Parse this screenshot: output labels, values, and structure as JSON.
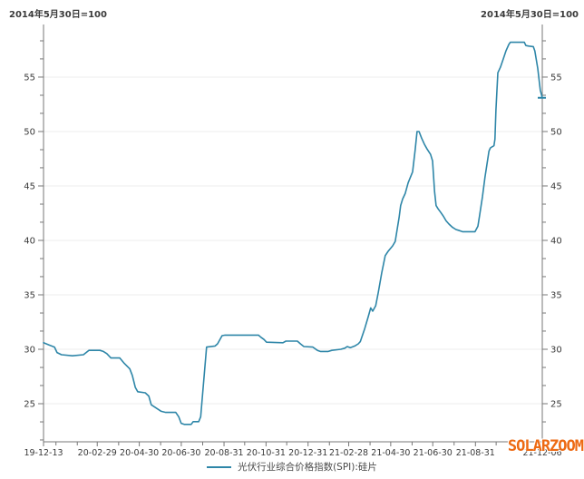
{
  "header": {
    "left_note": "2014年5月30日=100",
    "right_note": "2014年5月30日=100"
  },
  "legend": {
    "label": "光伏行业综合价格指数(SPI):硅片"
  },
  "watermark": {
    "text": "SOLARZOOM",
    "color": "#ed6a13"
  },
  "chart_data": {
    "type": "line",
    "title": "",
    "baseline_note": "2014年5月30日=100",
    "legend_position": "bottom-center",
    "grid": {
      "horizontal_majors": true,
      "color": "#ececec"
    },
    "axis_color": "#777777",
    "label_color": "#3a3a3a",
    "x_axis": {
      "unit": "date (YY-MM-DD), f = fraction of axis from 19-12-13 to 21-12-06",
      "labeled_ticks": [
        {
          "f": 0.0,
          "label": "19-12-13"
        },
        {
          "f": 0.1077,
          "label": "20-02-29"
        },
        {
          "f": 0.192,
          "label": "20-04-30"
        },
        {
          "f": 0.2762,
          "label": "20-06-30"
        },
        {
          "f": 0.3619,
          "label": "20-08-31"
        },
        {
          "f": 0.4461,
          "label": "20-10-31"
        },
        {
          "f": 0.5304,
          "label": "20-12-31"
        },
        {
          "f": 0.6119,
          "label": "21-02-28"
        },
        {
          "f": 0.6961,
          "label": "21-04-30"
        },
        {
          "f": 0.7804,
          "label": "21-06-30"
        },
        {
          "f": 0.866,
          "label": "21-08-31"
        },
        {
          "f": 1.0,
          "label": "21-12-06"
        }
      ],
      "minor_ticks_f": [
        0.0249,
        0.0677,
        0.1506,
        0.2348,
        0.3191,
        0.4033,
        0.4876,
        0.5732,
        0.6547,
        0.739,
        0.8232,
        0.9075,
        0.9503,
        0.9917
      ]
    },
    "y_axis": {
      "min": 21.5,
      "max": 59.83,
      "sides": "both",
      "major_ticks": [
        25,
        30,
        35,
        40,
        45,
        50,
        55
      ],
      "minor_ticks": [
        21.67,
        23.33,
        26.67,
        28.33,
        31.67,
        33.33,
        36.67,
        38.33,
        41.67,
        43.33,
        46.67,
        48.33,
        51.67,
        53.33,
        56.67,
        58.33
      ]
    },
    "series": [
      {
        "name": "光伏行业综合价格指数(SPI):硅片",
        "color": "#2e86a8",
        "points": [
          [
            0,
            30.6
          ],
          [
            0.011,
            30.4
          ],
          [
            0.022,
            30.2
          ],
          [
            0.027,
            29.7
          ],
          [
            0.036,
            29.5
          ],
          [
            0.058,
            29.4
          ],
          [
            0.08,
            29.5
          ],
          [
            0.091,
            29.9
          ],
          [
            0.113,
            29.9
          ],
          [
            0.12,
            29.8
          ],
          [
            0.127,
            29.6
          ],
          [
            0.135,
            29.2
          ],
          [
            0.153,
            29.2
          ],
          [
            0.162,
            28.7
          ],
          [
            0.173,
            28.2
          ],
          [
            0.178,
            27.6
          ],
          [
            0.184,
            26.5
          ],
          [
            0.189,
            26.1
          ],
          [
            0.204,
            26.0
          ],
          [
            0.211,
            25.7
          ],
          [
            0.216,
            24.9
          ],
          [
            0.226,
            24.6
          ],
          [
            0.236,
            24.3
          ],
          [
            0.245,
            24.2
          ],
          [
            0.265,
            24.2
          ],
          [
            0.271,
            23.8
          ],
          [
            0.276,
            23.2
          ],
          [
            0.282,
            23.1
          ],
          [
            0.296,
            23.1
          ],
          [
            0.3,
            23.35
          ],
          [
            0.311,
            23.35
          ],
          [
            0.315,
            23.8
          ],
          [
            0.327,
            30.2
          ],
          [
            0.344,
            30.3
          ],
          [
            0.349,
            30.5
          ],
          [
            0.358,
            31.25
          ],
          [
            0.364,
            31.3
          ],
          [
            0.431,
            31.3
          ],
          [
            0.436,
            31.1
          ],
          [
            0.442,
            30.9
          ],
          [
            0.447,
            30.65
          ],
          [
            0.48,
            30.6
          ],
          [
            0.486,
            30.75
          ],
          [
            0.509,
            30.75
          ],
          [
            0.515,
            30.5
          ],
          [
            0.522,
            30.25
          ],
          [
            0.54,
            30.2
          ],
          [
            0.549,
            29.9
          ],
          [
            0.555,
            29.8
          ],
          [
            0.571,
            29.8
          ],
          [
            0.578,
            29.9
          ],
          [
            0.596,
            30.0
          ],
          [
            0.604,
            30.1
          ],
          [
            0.609,
            30.25
          ],
          [
            0.615,
            30.15
          ],
          [
            0.624,
            30.3
          ],
          [
            0.631,
            30.5
          ],
          [
            0.635,
            30.7
          ],
          [
            0.644,
            31.9
          ],
          [
            0.651,
            33.0
          ],
          [
            0.656,
            33.8
          ],
          [
            0.66,
            33.5
          ],
          [
            0.666,
            34.0
          ],
          [
            0.671,
            35.2
          ],
          [
            0.678,
            37.0
          ],
          [
            0.685,
            38.6
          ],
          [
            0.691,
            39.0
          ],
          [
            0.7,
            39.5
          ],
          [
            0.705,
            39.9
          ],
          [
            0.713,
            42.1
          ],
          [
            0.716,
            43.2
          ],
          [
            0.72,
            43.8
          ],
          [
            0.725,
            44.3
          ],
          [
            0.731,
            45.3
          ],
          [
            0.74,
            46.3
          ],
          [
            0.745,
            48.3
          ],
          [
            0.749,
            50.0
          ],
          [
            0.753,
            50.0
          ],
          [
            0.758,
            49.4
          ],
          [
            0.764,
            48.8
          ],
          [
            0.769,
            48.4
          ],
          [
            0.776,
            47.9
          ],
          [
            0.78,
            47.3
          ],
          [
            0.784,
            44.5
          ],
          [
            0.787,
            43.2
          ],
          [
            0.791,
            42.9
          ],
          [
            0.796,
            42.6
          ],
          [
            0.802,
            42.2
          ],
          [
            0.807,
            41.8
          ],
          [
            0.813,
            41.5
          ],
          [
            0.82,
            41.2
          ],
          [
            0.827,
            41.0
          ],
          [
            0.834,
            40.9
          ],
          [
            0.84,
            40.8
          ],
          [
            0.865,
            40.8
          ],
          [
            0.871,
            41.3
          ],
          [
            0.874,
            42.2
          ],
          [
            0.88,
            44.0
          ],
          [
            0.885,
            45.8
          ],
          [
            0.889,
            47.0
          ],
          [
            0.893,
            48.2
          ],
          [
            0.896,
            48.5
          ],
          [
            0.903,
            48.7
          ],
          [
            0.905,
            49.3
          ],
          [
            0.907,
            52.0
          ],
          [
            0.911,
            55.4
          ],
          [
            0.916,
            55.9
          ],
          [
            0.922,
            56.7
          ],
          [
            0.927,
            57.4
          ],
          [
            0.933,
            58.0
          ],
          [
            0.936,
            58.2
          ],
          [
            0.964,
            58.2
          ],
          [
            0.967,
            57.9
          ],
          [
            0.973,
            57.85
          ],
          [
            0.982,
            57.8
          ],
          [
            0.985,
            57.4
          ],
          [
            0.991,
            55.8
          ],
          [
            0.996,
            53.8
          ],
          [
            1,
            53.1
          ]
        ]
      }
    ],
    "end_marker": {
      "f": 1,
      "value": 53.1
    }
  }
}
